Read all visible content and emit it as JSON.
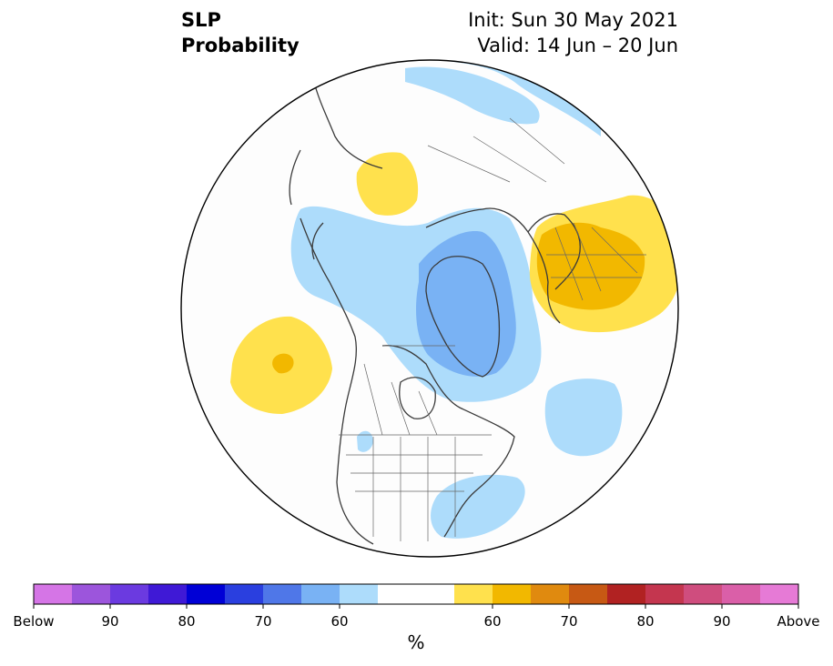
{
  "header": {
    "variable": "SLP",
    "product": "Probability",
    "init": "Init: Sun 30 May 2021",
    "valid": "Valid: 14 Jun – 20 Jun"
  },
  "colorbar": {
    "unit": "%",
    "colors": [
      "#d575e6",
      "#9c55dc",
      "#6b3ae0",
      "#3f19d6",
      "#0000d6",
      "#2a3fdf",
      "#4f77e8",
      "#79b2f4",
      "#addcfb",
      "#ffffff",
      "#ffffff",
      "#ffe14d",
      "#f2b800",
      "#e08a0f",
      "#c75914",
      "#b12222",
      "#c4364f",
      "#cf4d7e",
      "#da5fa8",
      "#e67ad6"
    ],
    "labels": [
      {
        "text": "Below",
        "boundary": 0
      },
      {
        "text": "90",
        "boundary": 2
      },
      {
        "text": "80",
        "boundary": 4
      },
      {
        "text": "70",
        "boundary": 6
      },
      {
        "text": "60",
        "boundary": 8
      },
      {
        "text": "60",
        "boundary": 12
      },
      {
        "text": "70",
        "boundary": 14
      },
      {
        "text": "80",
        "boundary": 16
      },
      {
        "text": "90",
        "boundary": 18
      },
      {
        "text": "Above",
        "boundary": 20
      }
    ]
  },
  "map": {
    "projection": "north-polar-stereographic",
    "anomaly_regions": [
      {
        "name": "europe-above",
        "category": "above",
        "level": "60-65"
      },
      {
        "name": "europe-above-core",
        "category": "above",
        "level": "65-70"
      },
      {
        "name": "gulf-of-alaska-above",
        "category": "above",
        "level": "60-65"
      },
      {
        "name": "gulf-of-alaska-above-core",
        "category": "above",
        "level": "65-70"
      },
      {
        "name": "east-asia-above",
        "category": "above",
        "level": "60-65"
      },
      {
        "name": "arctic-below",
        "category": "below",
        "level": "60-65"
      },
      {
        "name": "greenland-below",
        "category": "below",
        "level": "65-70"
      },
      {
        "name": "north-atlantic-below",
        "category": "below",
        "level": "60-65"
      },
      {
        "name": "us-east-coast-below",
        "category": "below",
        "level": "60-65"
      }
    ]
  }
}
